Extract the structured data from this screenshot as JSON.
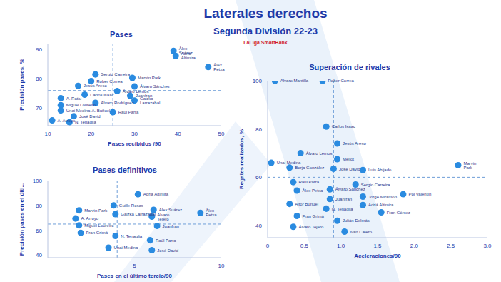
{
  "title": "Laterales derechos",
  "subtitle": "Segunda División 22-23",
  "logo": "LaLiga SmartBank",
  "chart_data": [
    {
      "type": "scatter",
      "title": "Pases",
      "x_label": "Pases recibidos /90",
      "y_label": "Precisión pases, %",
      "xlim": [
        10,
        50
      ],
      "ylim": [
        64,
        92
      ],
      "xticks": [
        10,
        20,
        30,
        40,
        50
      ],
      "yticks": [
        70,
        80,
        90
      ],
      "reference_lines": {
        "x": 25,
        "y": 76
      },
      "color": "#2a8be0",
      "data_labels": true,
      "points": [
        {
          "name": "Àlex Suárez",
          "x": 39,
          "y": 89.5
        },
        {
          "name": "Adrià Altimira",
          "x": 39.5,
          "y": 87.8
        },
        {
          "name": "Àlex Petxa",
          "x": 47,
          "y": 84
        },
        {
          "name": "Sergio Carreira",
          "x": 21,
          "y": 81.5
        },
        {
          "name": "Marvin Park",
          "x": 29.5,
          "y": 80.3
        },
        {
          "name": "Rober Correa",
          "x": 20,
          "y": 79.2
        },
        {
          "name": "Jesús Areso",
          "x": 17,
          "y": 77.6
        },
        {
          "name": "Álvaro Sánchez",
          "x": 30,
          "y": 77.4
        },
        {
          "name": "Álvaro Lemos",
          "x": 26,
          "y": 75.8
        },
        {
          "name": "Carlos Isaac",
          "x": 18.5,
          "y": 74.6
        },
        {
          "name": "Juanfran",
          "x": 29,
          "y": 74.2
        },
        {
          "name": "A. Ratiu",
          "x": 13,
          "y": 73.4
        },
        {
          "name": "Gaizka Larrazabal",
          "x": 30,
          "y": 72.6
        },
        {
          "name": "Álvaro Rodríguez",
          "x": 21,
          "y": 71.8
        },
        {
          "name": "Miguel Loureiro",
          "x": 13,
          "y": 71
        },
        {
          "name": "Unai Medina-A. Buñuel",
          "x": 13,
          "y": 69.2
        },
        {
          "name": "Raúl Parra",
          "x": 25,
          "y": 68.6
        },
        {
          "name": "José David",
          "x": 16,
          "y": 67.2
        },
        {
          "name": "A. Arroyo",
          "x": 11,
          "y": 65.8
        },
        {
          "name": "N. Tenaglia",
          "x": 15,
          "y": 65.2
        }
      ]
    },
    {
      "type": "scatter",
      "title": "Pases definitivos",
      "x_label": "Pases en el último tercio/90",
      "y_label": "Precisión pases en el últi...",
      "xlim": [
        0,
        10
      ],
      "ylim": [
        38,
        100
      ],
      "xticks": [
        5,
        10
      ],
      "yticks": [
        40,
        60,
        80,
        100
      ],
      "reference_lines": {
        "x": 4,
        "y": 65
      },
      "color": "#2a8be0",
      "data_labels": true,
      "points": [
        {
          "name": "Adrià Altimira",
          "x": 5.2,
          "y": 89
        },
        {
          "name": "Guille Rosas",
          "x": 3.8,
          "y": 80
        },
        {
          "name": "Marvin Park",
          "x": 1.8,
          "y": 76
        },
        {
          "name": "Àlex Suárez",
          "x": 6.1,
          "y": 76.5
        },
        {
          "name": "Àlex Petxa",
          "x": 8.8,
          "y": 74
        },
        {
          "name": "Gaizka Larrazabal",
          "x": 3.9,
          "y": 73
        },
        {
          "name": "Álvaro Tejero",
          "x": 6.0,
          "y": 71
        },
        {
          "name": "A. Arroyo",
          "x": 1.6,
          "y": 69.5
        },
        {
          "name": "Miguel Loureiro",
          "x": 1.8,
          "y": 64
        },
        {
          "name": "Juanfran",
          "x": 6.3,
          "y": 63.5
        },
        {
          "name": "Fran Grimá",
          "x": 1.9,
          "y": 58
        },
        {
          "name": "N. Tenaglia",
          "x": 3.9,
          "y": 55.5
        },
        {
          "name": "Raúl Parra",
          "x": 5.9,
          "y": 52
        },
        {
          "name": "Unai Medina",
          "x": 3.5,
          "y": 46
        },
        {
          "name": "José David",
          "x": 6.0,
          "y": 44
        }
      ]
    },
    {
      "type": "scatter",
      "title": "Superación de rivales",
      "x_label": "Aceleraciones/90",
      "y_label": "Regates realizados, %",
      "xlim": [
        0,
        3
      ],
      "ylim": [
        35,
        100
      ],
      "xticks": [
        0,
        {
          "value": 0.5,
          "label": "0,5"
        },
        {
          "value": 1,
          "label": "1,0"
        },
        {
          "value": 1.5,
          "label": "1,5"
        },
        {
          "value": 2,
          "label": "2,0"
        },
        {
          "value": 2.5,
          "label": "2,5"
        },
        {
          "value": 3,
          "label": "3,0"
        }
      ],
      "yticks": [
        40,
        60,
        80,
        100
      ],
      "reference_lines": {
        "x": 0.9,
        "y": 60
      },
      "color": "#2a8be0",
      "data_labels": true,
      "points": [
        {
          "name": "Álvaro Mantilla",
          "x": 0.1,
          "y": 100
        },
        {
          "name": "Rober Correa",
          "x": 0.75,
          "y": 100
        },
        {
          "name": "Carlos Isaac",
          "x": 0.8,
          "y": 81
        },
        {
          "name": "Jesús Areso",
          "x": 0.95,
          "y": 74
        },
        {
          "name": "Álvaro Lemos",
          "x": 0.45,
          "y": 70
        },
        {
          "name": "Mellot",
          "x": 0.95,
          "y": 67.5
        },
        {
          "name": "Unai Medina",
          "x": 0.05,
          "y": 66
        },
        {
          "name": "Marvin Park",
          "x": 2.6,
          "y": 65
        },
        {
          "name": "Borja González",
          "x": 0.3,
          "y": 64
        },
        {
          "name": "José David",
          "x": 0.9,
          "y": 63.5
        },
        {
          "name": "Luis Ahijado",
          "x": 1.3,
          "y": 63
        },
        {
          "name": "Raúl Parra",
          "x": 0.35,
          "y": 58
        },
        {
          "name": "Sergio Carreira",
          "x": 1.2,
          "y": 57
        },
        {
          "name": "Àlex Petxa",
          "x": 0.4,
          "y": 54.5
        },
        {
          "name": "Álvaro Sánchez",
          "x": 0.85,
          "y": 55
        },
        {
          "name": "Pol Valentín",
          "x": 1.85,
          "y": 53
        },
        {
          "name": "Jorge Miramón",
          "x": 1.3,
          "y": 52
        },
        {
          "name": "Juanfran",
          "x": 0.85,
          "y": 51
        },
        {
          "name": "Aitor Buñuel",
          "x": 0.3,
          "y": 49
        },
        {
          "name": "Adrià Altimira",
          "x": 1.3,
          "y": 48.5
        },
        {
          "name": "N. Tenaglia",
          "x": 0.8,
          "y": 47
        },
        {
          "name": "Fran Gómez",
          "x": 1.55,
          "y": 45.5
        },
        {
          "name": "Fran Grimá",
          "x": 0.4,
          "y": 44
        },
        {
          "name": "Julián Delmás",
          "x": 0.95,
          "y": 42
        },
        {
          "name": "Álvaro Tejero",
          "x": 0.35,
          "y": 39.5
        },
        {
          "name": "Iván Calero",
          "x": 1.05,
          "y": 37.5
        }
      ]
    }
  ]
}
